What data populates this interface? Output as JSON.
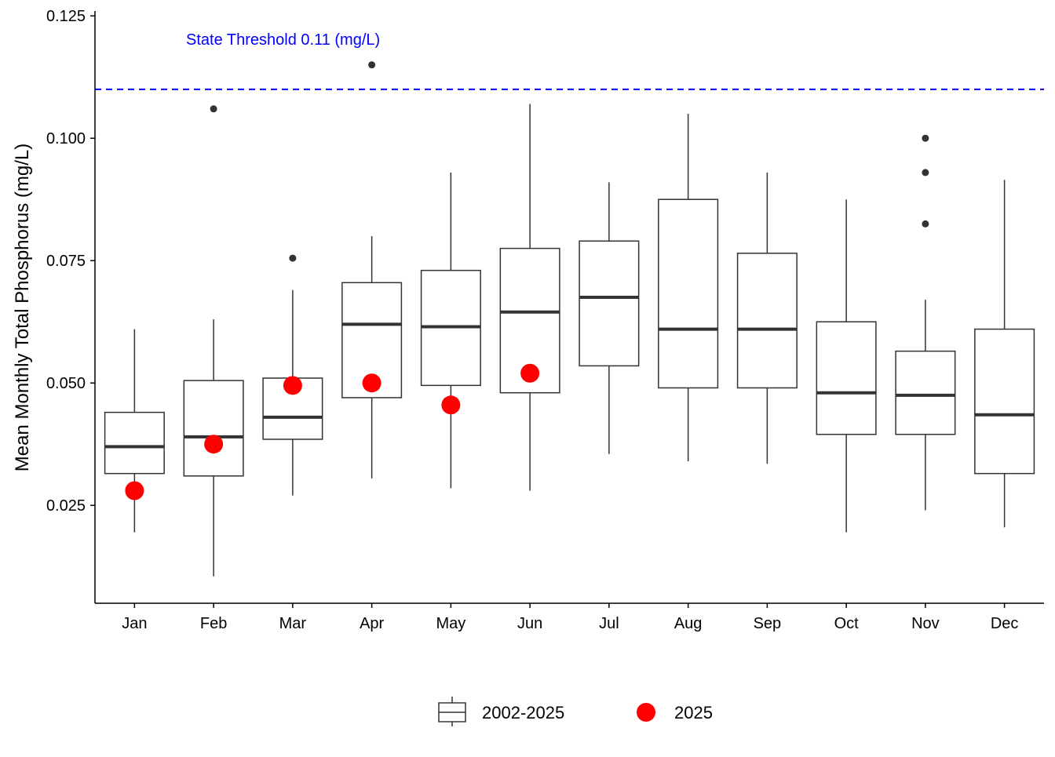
{
  "chart_data": {
    "type": "boxplot",
    "title": "",
    "xlabel": "",
    "ylabel": "Mean Monthly Total Phosphorus (mg/L)",
    "ylim": [
      0.005,
      0.126
    ],
    "yticks": [
      "0.025",
      "0.050",
      "0.075",
      "0.100",
      "0.125"
    ],
    "grid": false,
    "legend_position": "bottom",
    "categories": [
      "Jan",
      "Feb",
      "Mar",
      "Apr",
      "May",
      "Jun",
      "Jul",
      "Aug",
      "Sep",
      "Oct",
      "Nov",
      "Dec"
    ],
    "threshold": {
      "value": 0.11,
      "label": "State Threshold 0.11 (mg/L)",
      "color": "#0000ff"
    },
    "series": [
      {
        "name": "2002-2025",
        "kind": "box",
        "boxes": [
          {
            "whisker_low": 0.0195,
            "q1": 0.0315,
            "median": 0.037,
            "q3": 0.044,
            "whisker_high": 0.061,
            "outliers": []
          },
          {
            "whisker_low": 0.0105,
            "q1": 0.031,
            "median": 0.039,
            "q3": 0.0505,
            "whisker_high": 0.063,
            "outliers": [
              0.106
            ]
          },
          {
            "whisker_low": 0.027,
            "q1": 0.0385,
            "median": 0.043,
            "q3": 0.051,
            "whisker_high": 0.069,
            "outliers": [
              0.0755
            ]
          },
          {
            "whisker_low": 0.0305,
            "q1": 0.047,
            "median": 0.062,
            "q3": 0.0705,
            "whisker_high": 0.08,
            "outliers": [
              0.115
            ]
          },
          {
            "whisker_low": 0.0285,
            "q1": 0.0495,
            "median": 0.0615,
            "q3": 0.073,
            "whisker_high": 0.093,
            "outliers": []
          },
          {
            "whisker_low": 0.028,
            "q1": 0.048,
            "median": 0.0645,
            "q3": 0.0775,
            "whisker_high": 0.107,
            "outliers": []
          },
          {
            "whisker_low": 0.0355,
            "q1": 0.0535,
            "median": 0.0675,
            "q3": 0.079,
            "whisker_high": 0.091,
            "outliers": []
          },
          {
            "whisker_low": 0.034,
            "q1": 0.049,
            "median": 0.061,
            "q3": 0.0875,
            "whisker_high": 0.105,
            "outliers": []
          },
          {
            "whisker_low": 0.0335,
            "q1": 0.049,
            "median": 0.061,
            "q3": 0.0765,
            "whisker_high": 0.093,
            "outliers": []
          },
          {
            "whisker_low": 0.0195,
            "q1": 0.0395,
            "median": 0.048,
            "q3": 0.0625,
            "whisker_high": 0.0875,
            "outliers": []
          },
          {
            "whisker_low": 0.024,
            "q1": 0.0395,
            "median": 0.0475,
            "q3": 0.0565,
            "whisker_high": 0.067,
            "outliers": [
              0.0825,
              0.093,
              0.1
            ]
          },
          {
            "whisker_low": 0.0205,
            "q1": 0.0315,
            "median": 0.0435,
            "q3": 0.061,
            "whisker_high": 0.0915,
            "outliers": []
          }
        ]
      },
      {
        "name": "2025",
        "kind": "point",
        "color": "#ff0000",
        "values": [
          0.028,
          0.0375,
          0.0495,
          0.05,
          0.0455,
          0.052,
          null,
          null,
          null,
          null,
          null,
          null
        ]
      }
    ]
  }
}
